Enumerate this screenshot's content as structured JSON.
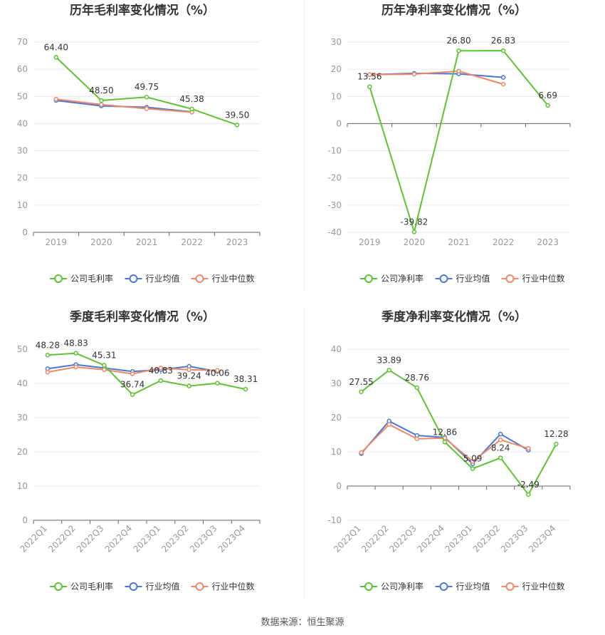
{
  "source_label": "数据来源：恒生聚源",
  "colors": {
    "company": "#5ec232",
    "avg": "#4a78d4",
    "median": "#ee8866",
    "grid": "#e9e9e9",
    "axis": "#666666",
    "tick": "#999999",
    "title": "#333333"
  },
  "chart_data": [
    {
      "type": "line",
      "title": "历年毛利率变化情况（%）",
      "categories": [
        "2019",
        "2020",
        "2021",
        "2022",
        "2023"
      ],
      "ylim": [
        0,
        70
      ],
      "yticks": [
        0,
        10,
        20,
        30,
        40,
        50,
        60,
        70
      ],
      "grid": true,
      "legend": "bottom",
      "rotate_x": false,
      "series": [
        {
          "name": "公司毛利率",
          "key": "company",
          "values": [
            64.4,
            48.5,
            49.75,
            45.38,
            39.5
          ],
          "labels": [
            "64.40",
            "48.50",
            "49.75",
            "45.38",
            "39.50"
          ]
        },
        {
          "name": "行业均值",
          "key": "avg",
          "values": [
            48.5,
            46.5,
            46.0,
            44.3,
            null
          ]
        },
        {
          "name": "行业中位数",
          "key": "median",
          "values": [
            49.0,
            47.0,
            45.5,
            44.2,
            null
          ]
        }
      ]
    },
    {
      "type": "line",
      "title": "历年净利率变化情况（%）",
      "categories": [
        "2019",
        "2020",
        "2021",
        "2022",
        "2023"
      ],
      "ylim": [
        -40,
        30
      ],
      "yticks": [
        -40,
        -30,
        -20,
        -10,
        0,
        10,
        20,
        30
      ],
      "grid": true,
      "legend": "bottom",
      "rotate_x": false,
      "series": [
        {
          "name": "公司净利率",
          "key": "company",
          "values": [
            13.56,
            -39.82,
            26.8,
            26.83,
            6.69
          ],
          "labels": [
            "13.56",
            "-39.82",
            "26.80",
            "26.83",
            "6.69"
          ]
        },
        {
          "name": "行业均值",
          "key": "avg",
          "values": [
            18.0,
            18.5,
            18.3,
            17.0,
            null
          ]
        },
        {
          "name": "行业中位数",
          "key": "median",
          "values": [
            18.0,
            18.2,
            19.3,
            14.5,
            null
          ]
        }
      ]
    },
    {
      "type": "line",
      "title": "季度毛利率变化情况（%）",
      "categories": [
        "2022Q1",
        "2022Q2",
        "2022Q3",
        "2022Q4",
        "2023Q1",
        "2023Q2",
        "2023Q3",
        "2023Q4"
      ],
      "ylim": [
        0,
        50
      ],
      "yticks": [
        0,
        10,
        20,
        30,
        40,
        50
      ],
      "grid": true,
      "legend": "bottom",
      "rotate_x": true,
      "series": [
        {
          "name": "公司毛利率",
          "key": "company",
          "values": [
            48.28,
            48.83,
            45.31,
            36.74,
            40.83,
            39.24,
            40.06,
            38.31
          ],
          "labels": [
            "48.28",
            "48.83",
            "45.31",
            "36.74",
            "40.83",
            "39.24",
            "40.06",
            "38.31"
          ]
        },
        {
          "name": "行业均值",
          "key": "avg",
          "values": [
            44.3,
            45.5,
            44.5,
            43.5,
            44.0,
            45.0,
            43.5,
            null
          ]
        },
        {
          "name": "行业中位数",
          "key": "median",
          "values": [
            43.3,
            44.8,
            44.0,
            42.8,
            44.5,
            44.0,
            43.8,
            null
          ]
        }
      ]
    },
    {
      "type": "line",
      "title": "季度净利率变化情况（%）",
      "categories": [
        "2022Q1",
        "2022Q2",
        "2022Q3",
        "2022Q4",
        "2023Q1",
        "2023Q2",
        "2023Q3",
        "2023Q4"
      ],
      "ylim": [
        -10,
        40
      ],
      "yticks": [
        -10,
        0,
        10,
        20,
        30,
        40
      ],
      "grid": true,
      "legend": "bottom",
      "rotate_x": true,
      "series": [
        {
          "name": "公司净利率",
          "key": "company",
          "values": [
            27.55,
            33.89,
            28.76,
            12.86,
            5.09,
            8.24,
            -2.49,
            12.28
          ],
          "labels": [
            "27.55",
            "33.89",
            "28.76",
            "12.86",
            "5.09",
            "8.24",
            "-2.49",
            "12.28"
          ]
        },
        {
          "name": "行业均值",
          "key": "avg",
          "values": [
            9.5,
            19.0,
            14.8,
            14.2,
            6.5,
            15.2,
            10.5,
            null
          ]
        },
        {
          "name": "行业中位数",
          "key": "median",
          "values": [
            9.8,
            18.0,
            13.8,
            14.0,
            7.2,
            13.5,
            11.0,
            null
          ]
        }
      ]
    }
  ]
}
